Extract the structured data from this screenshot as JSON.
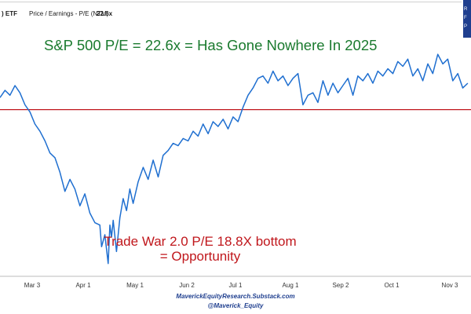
{
  "header": {
    "series": ") ETF",
    "metric": "Price / Earnings - P/E (NTM)",
    "current_value": "22.6x"
  },
  "corner_badge": {
    "letters": [
      "R",
      "F",
      "P"
    ]
  },
  "footer": {
    "line1": "MaverickEquityResearch.Substack.com",
    "line2": "@Maverick_Equity"
  },
  "chart_data": {
    "type": "line",
    "title": "S&P 500 P/E = 22.6x = Has Gone Nowhere In 2025",
    "annotation": [
      "Trade War 2.0 P/E 18.8X bottom",
      "= Opportunity"
    ],
    "x_tick_labels": [
      "Mar 3",
      "Apr 1",
      "May 1",
      "Jun 2",
      "Jul 1",
      "Aug 1",
      "Sep 2",
      "Oct 1",
      "Nov 3"
    ],
    "reference_line": {
      "value": 22.0,
      "color": "#c0171c"
    },
    "ylim": [
      18.6,
      23.3
    ],
    "grid": false,
    "legend": "none",
    "line_color": "#1f6fd0",
    "x": [
      "2025-02-01",
      "2025-02-04",
      "2025-02-07",
      "2025-02-10",
      "2025-02-13",
      "2025-02-16",
      "2025-02-19",
      "2025-02-22",
      "2025-02-25",
      "2025-02-28",
      "2025-03-03",
      "2025-03-06",
      "2025-03-09",
      "2025-03-12",
      "2025-03-15",
      "2025-03-18",
      "2025-03-21",
      "2025-03-24",
      "2025-03-27",
      "2025-03-30",
      "2025-04-02",
      "2025-04-03",
      "2025-04-05",
      "2025-04-07",
      "2025-04-08",
      "2025-04-09",
      "2025-04-10",
      "2025-04-12",
      "2025-04-14",
      "2025-04-16",
      "2025-04-18",
      "2025-04-20",
      "2025-04-22",
      "2025-04-25",
      "2025-04-28",
      "2025-05-01",
      "2025-05-04",
      "2025-05-07",
      "2025-05-10",
      "2025-05-13",
      "2025-05-16",
      "2025-05-19",
      "2025-05-22",
      "2025-05-25",
      "2025-05-28",
      "2025-05-31",
      "2025-06-03",
      "2025-06-06",
      "2025-06-09",
      "2025-06-12",
      "2025-06-15",
      "2025-06-18",
      "2025-06-21",
      "2025-06-24",
      "2025-06-27",
      "2025-06-30",
      "2025-07-03",
      "2025-07-06",
      "2025-07-09",
      "2025-07-12",
      "2025-07-15",
      "2025-07-18",
      "2025-07-21",
      "2025-07-24",
      "2025-07-27",
      "2025-07-30",
      "2025-08-02",
      "2025-08-05",
      "2025-08-08",
      "2025-08-11",
      "2025-08-14",
      "2025-08-17",
      "2025-08-20",
      "2025-08-23",
      "2025-08-26",
      "2025-08-29",
      "2025-09-01",
      "2025-09-04",
      "2025-09-07",
      "2025-09-10",
      "2025-09-13",
      "2025-09-16",
      "2025-09-19",
      "2025-09-22",
      "2025-09-25",
      "2025-09-28",
      "2025-10-01",
      "2025-10-04",
      "2025-10-07",
      "2025-10-10",
      "2025-10-13",
      "2025-10-16",
      "2025-10-19",
      "2025-10-22",
      "2025-10-25",
      "2025-10-28",
      "2025-10-31",
      "2025-11-03",
      "2025-11-06",
      "2025-11-09"
    ],
    "values": [
      22.25,
      22.4,
      22.3,
      22.5,
      22.35,
      22.1,
      21.95,
      21.7,
      21.55,
      21.35,
      21.1,
      21.0,
      20.7,
      20.3,
      20.55,
      20.35,
      20.0,
      20.25,
      19.85,
      19.65,
      19.6,
      19.15,
      19.4,
      18.8,
      19.6,
      19.35,
      19.7,
      19.05,
      19.75,
      20.15,
      19.9,
      20.35,
      20.05,
      20.5,
      20.8,
      20.55,
      20.95,
      20.6,
      21.05,
      21.15,
      21.3,
      21.25,
      21.4,
      21.35,
      21.55,
      21.45,
      21.7,
      21.5,
      21.75,
      21.65,
      21.8,
      21.6,
      21.85,
      21.75,
      22.05,
      22.3,
      22.45,
      22.65,
      22.7,
      22.55,
      22.8,
      22.6,
      22.7,
      22.5,
      22.65,
      22.75,
      22.1,
      22.3,
      22.35,
      22.15,
      22.6,
      22.3,
      22.55,
      22.35,
      22.5,
      22.65,
      22.3,
      22.7,
      22.6,
      22.75,
      22.55,
      22.8,
      22.7,
      22.85,
      22.75,
      23.0,
      22.9,
      23.05,
      22.7,
      22.85,
      22.6,
      22.95,
      22.75,
      23.15,
      22.95,
      23.05,
      22.6,
      22.75,
      22.45,
      22.55
    ]
  }
}
